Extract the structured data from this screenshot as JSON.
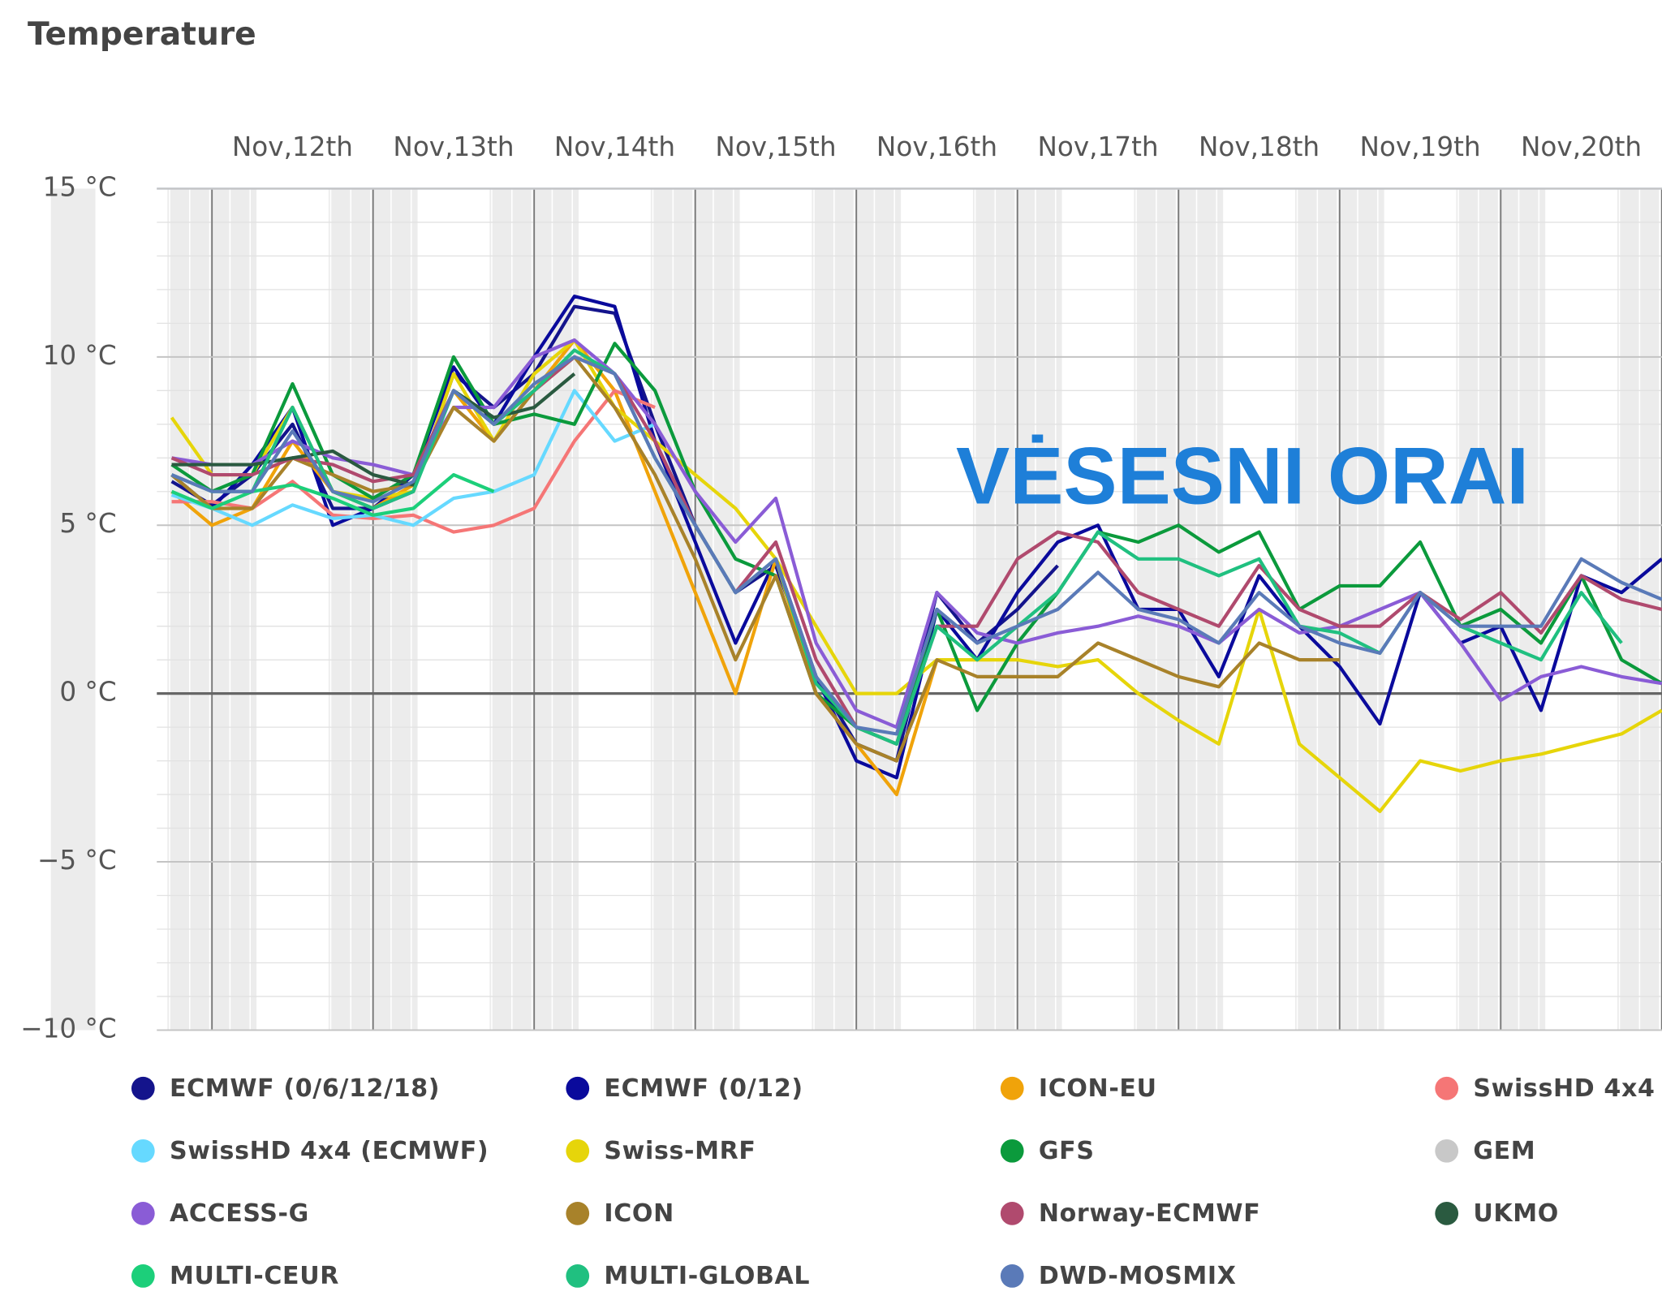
{
  "chart_data": {
    "type": "line",
    "title": "Temperature",
    "annotation": "VĖSESNI ORAI",
    "ylim": [
      -10,
      15
    ],
    "yticks": [
      {
        "value": 15,
        "label": "15 °C"
      },
      {
        "value": 10,
        "label": "10 °C"
      },
      {
        "value": 5,
        "label": "5 °C"
      },
      {
        "value": 0,
        "label": "0 °C"
      },
      {
        "value": -5,
        "label": "−5 °C"
      },
      {
        "value": -10,
        "label": "−10 °C"
      }
    ],
    "grid": true,
    "categories": [
      null,
      null,
      null,
      "Nov,12th",
      null,
      null,
      null,
      "Nov,13th",
      null,
      null,
      null,
      "Nov,14th",
      null,
      null,
      null,
      "Nov,15th",
      null,
      null,
      null,
      "Nov,16th",
      null,
      null,
      null,
      "Nov,17th",
      null,
      null,
      null,
      "Nov,18th",
      null,
      null,
      null,
      "Nov,19th",
      null,
      null,
      null,
      "Nov,20th",
      null,
      null
    ],
    "series": [
      {
        "name": "ECMWF (0/6/12/18)",
        "color": "#14148c",
        "values": [
          6.3,
          5.6,
          6.5,
          8,
          5.5,
          5.5,
          6,
          9.5,
          8.5,
          9.5,
          11.5,
          11.3,
          8,
          5,
          3,
          3.8,
          0.5,
          -1.5,
          -2,
          3,
          1.5,
          2.5,
          3.8,
          null,
          null,
          null,
          null,
          null,
          null,
          null,
          null,
          null,
          null,
          null,
          null,
          null,
          null,
          null
        ]
      },
      {
        "name": "ECMWF (0/12)",
        "color": "#0a0a9c",
        "values": [
          6.5,
          5.5,
          6.8,
          8.5,
          5,
          5.5,
          6.5,
          9.7,
          8,
          10,
          11.8,
          11.5,
          7.5,
          4.5,
          1.5,
          4,
          0.5,
          -2,
          -2.5,
          2.5,
          1,
          3,
          4.5,
          5,
          2.5,
          2.5,
          0.5,
          3.5,
          2,
          0.8,
          -0.9,
          3,
          1.5,
          2,
          -0.5,
          3.5,
          3,
          4
        ]
      },
      {
        "name": "ICON-EU",
        "color": "#f0a30a",
        "values": [
          6,
          5,
          5.5,
          7.5,
          6,
          5.5,
          6.2,
          9,
          7.5,
          9,
          10.5,
          9,
          6,
          3,
          0,
          4,
          0,
          -1.5,
          -3,
          1,
          null,
          null,
          null,
          null,
          null,
          null,
          null,
          null,
          null,
          null,
          null,
          null,
          null,
          null,
          null,
          null,
          null,
          null
        ]
      },
      {
        "name": "SwissHD 4x4",
        "color": "#f57676",
        "values": [
          5.7,
          5.7,
          5.5,
          6.3,
          5.3,
          5.2,
          5.3,
          4.8,
          5,
          5.5,
          7.5,
          9,
          8.5,
          null,
          null,
          null,
          null,
          null,
          null,
          null,
          null,
          null,
          null,
          null,
          null,
          null,
          null,
          null,
          null,
          null,
          null,
          null,
          null,
          null,
          null,
          null,
          null,
          null
        ]
      },
      {
        "name": "SwissHD 4x4 (ECMWF)",
        "color": "#66d9ff",
        "values": [
          5.9,
          5.5,
          5,
          5.6,
          5.2,
          5.3,
          5,
          5.8,
          6,
          6.5,
          9,
          7.5,
          8,
          null,
          null,
          null,
          null,
          null,
          null,
          null,
          null,
          null,
          null,
          null,
          null,
          null,
          null,
          null,
          null,
          null,
          null,
          null,
          null,
          null,
          null,
          null,
          null,
          null
        ]
      },
      {
        "name": "Swiss-MRF",
        "color": "#e6d50a",
        "values": [
          8.2,
          6.5,
          6.5,
          8.5,
          6,
          5.8,
          6,
          9.5,
          7.5,
          9.5,
          10.5,
          8.5,
          7.5,
          6.5,
          5.5,
          4,
          2,
          0,
          0,
          1,
          1,
          1,
          0.8,
          1,
          0,
          -0.8,
          -1.5,
          2.5,
          -1.5,
          -2.5,
          -3.5,
          -2,
          -2.3,
          -2,
          -1.8,
          -1.5,
          -1.2,
          -0.5
        ]
      },
      {
        "name": "GFS",
        "color": "#0b9a3c",
        "values": [
          6.8,
          6,
          6.5,
          9.2,
          6.5,
          5.8,
          6.5,
          10,
          8,
          8.3,
          8,
          10.4,
          9,
          6,
          4,
          3.5,
          0,
          -1,
          -1.5,
          2.5,
          -0.5,
          1.5,
          3,
          4.8,
          4.5,
          5,
          4.2,
          4.8,
          2.5,
          3.2,
          3.2,
          4.5,
          2,
          2.5,
          1.5,
          3.5,
          1,
          0.3
        ]
      },
      {
        "name": "GEM",
        "color": "#c8c8c8",
        "hidden": true,
        "values": [
          null,
          null,
          null,
          null,
          null,
          null,
          null,
          null,
          null,
          null,
          null,
          null,
          null,
          null,
          null,
          null,
          null,
          null,
          null,
          null,
          null,
          null,
          null,
          null,
          null,
          null,
          null,
          null,
          null,
          null,
          null,
          null,
          null,
          null,
          null,
          null,
          null,
          null
        ]
      },
      {
        "name": "ACCESS-G",
        "color": "#8a5cd6",
        "values": [
          7,
          6.8,
          6.8,
          7.5,
          7,
          6.8,
          6.5,
          8.5,
          8.5,
          10,
          10.5,
          9.5,
          8,
          6,
          4.5,
          5.8,
          1.5,
          -0.5,
          -1,
          3,
          1.8,
          1.5,
          1.8,
          2,
          2.3,
          2,
          1.5,
          2.5,
          1.8,
          2,
          2.5,
          3,
          1.5,
          -0.2,
          0.5,
          0.8,
          0.5,
          0.3
        ]
      },
      {
        "name": "ICON",
        "color": "#a8822a",
        "values": [
          6.5,
          5.5,
          5.5,
          7,
          6.5,
          6,
          6.2,
          8.5,
          7.5,
          9,
          10,
          8.5,
          6.5,
          4,
          1,
          3.5,
          0,
          -1.5,
          -2,
          1,
          0.5,
          0.5,
          0.5,
          1.5,
          1,
          0.5,
          0.2,
          1.5,
          1,
          1,
          null,
          null,
          null,
          null,
          null,
          null,
          null,
          null
        ]
      },
      {
        "name": "Norway-ECMWF",
        "color": "#b04a6e",
        "values": [
          7,
          6.5,
          6.5,
          7,
          6.8,
          6.3,
          6.5,
          9,
          8,
          9,
          10,
          9.5,
          7.5,
          5,
          3,
          4.5,
          1,
          -1,
          -1.5,
          2,
          2,
          4,
          4.8,
          4.5,
          3,
          2.5,
          2,
          3.8,
          2.5,
          2,
          2,
          3,
          2.2,
          3,
          1.8,
          3.5,
          2.8,
          2.5
        ]
      },
      {
        "name": "UKMO",
        "color": "#2a5a40",
        "values": [
          6.8,
          6.8,
          6.8,
          7,
          7.2,
          6.5,
          6.2,
          9,
          8.2,
          8.5,
          9.5,
          null,
          null,
          null,
          null,
          null,
          null,
          null,
          null,
          null,
          null,
          null,
          null,
          null,
          null,
          null,
          null,
          null,
          null,
          null,
          null,
          null,
          null,
          null,
          null,
          null,
          null,
          null
        ]
      },
      {
        "name": "MULTI-CEUR",
        "color": "#1ccf7a",
        "values": [
          6,
          5.5,
          6,
          6.2,
          5.8,
          5.3,
          5.5,
          6.5,
          6,
          null,
          null,
          null,
          null,
          null,
          null,
          null,
          null,
          null,
          null,
          null,
          null,
          null,
          null,
          null,
          null,
          null,
          null,
          null,
          null,
          null,
          null,
          null,
          null,
          null,
          null,
          null,
          null,
          null
        ]
      },
      {
        "name": "MULTI-GLOBAL",
        "color": "#20c080",
        "values": [
          6.5,
          6,
          6,
          8.5,
          6,
          5.5,
          6,
          9,
          8,
          9,
          10.2,
          9.5,
          7,
          5,
          3,
          4,
          0.3,
          -1,
          -1.5,
          2,
          1,
          2,
          3,
          4.8,
          4,
          4,
          3.5,
          4,
          2,
          1.8,
          1.2,
          3,
          2,
          1.5,
          1,
          3,
          1.5,
          null
        ]
      },
      {
        "name": "DWD-MOSMIX",
        "color": "#5a7ab8",
        "values": [
          6.5,
          6,
          6,
          7.8,
          6,
          5.7,
          6.3,
          9,
          8,
          9.2,
          10,
          9.5,
          7,
          5,
          3,
          4,
          0.5,
          -1,
          -1.2,
          2.5,
          1.5,
          2,
          2.5,
          3.6,
          2.5,
          2.2,
          1.5,
          3,
          2,
          1.5,
          1.2,
          3,
          2,
          2,
          2,
          4,
          3.3,
          2.8
        ]
      }
    ]
  }
}
